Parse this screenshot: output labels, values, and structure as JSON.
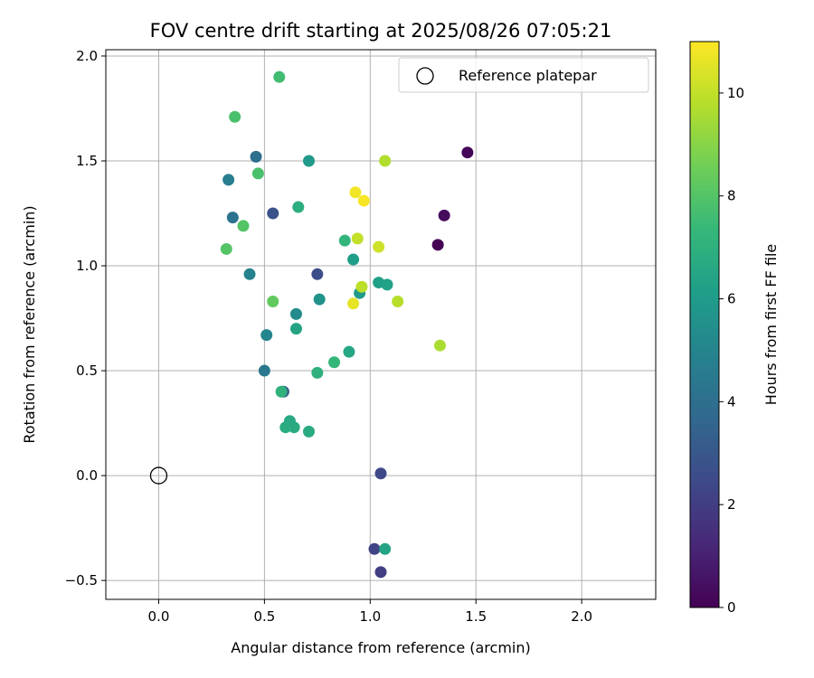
{
  "chart_data": {
    "type": "scatter",
    "title": "FOV centre drift starting at 2025/08/26 07:05:21",
    "xlabel": "Angular distance from reference (arcmin)",
    "ylabel": "Rotation from reference (arcmin)",
    "xlim": [
      -0.25,
      2.35
    ],
    "ylim": [
      -0.59,
      2.03
    ],
    "xticks": [
      0.0,
      0.5,
      1.0,
      1.5,
      2.0
    ],
    "xtick_labels": [
      "0.0",
      "0.5",
      "1.0",
      "1.5",
      "2.0"
    ],
    "yticks": [
      -0.5,
      0.0,
      0.5,
      1.0,
      1.5,
      2.0
    ],
    "ytick_labels": [
      "−0.5",
      "0.0",
      "0.5",
      "1.0",
      "1.5",
      "2.0"
    ],
    "grid": true,
    "legend_position": "top-right",
    "reference": {
      "name": "Reference platepar",
      "x": 0.0,
      "y": 0.0
    },
    "colorbar": {
      "label": "Hours from first FF file",
      "min": 0,
      "max": 11,
      "colormap": "viridis",
      "ticks": [
        0,
        2,
        4,
        6,
        8,
        10
      ],
      "tick_labels": [
        "0",
        "2",
        "4",
        "6",
        "8",
        "10"
      ]
    },
    "points": [
      {
        "x": 1.32,
        "y": 1.1,
        "hours": 0.0
      },
      {
        "x": 1.46,
        "y": 1.54,
        "hours": 0.1
      },
      {
        "x": 1.35,
        "y": 1.24,
        "hours": 0.3
      },
      {
        "x": 1.05,
        "y": -0.46,
        "hours": 2.0
      },
      {
        "x": 1.02,
        "y": -0.35,
        "hours": 2.2
      },
      {
        "x": 1.05,
        "y": 0.01,
        "hours": 2.4
      },
      {
        "x": 0.75,
        "y": 0.96,
        "hours": 2.6
      },
      {
        "x": 0.54,
        "y": 1.25,
        "hours": 2.8
      },
      {
        "x": 0.59,
        "y": 0.4,
        "hours": 3.2
      },
      {
        "x": 0.46,
        "y": 1.52,
        "hours": 4.0
      },
      {
        "x": 0.35,
        "y": 1.23,
        "hours": 4.2
      },
      {
        "x": 0.5,
        "y": 0.5,
        "hours": 4.4
      },
      {
        "x": 0.33,
        "y": 1.41,
        "hours": 4.7
      },
      {
        "x": 0.43,
        "y": 0.96,
        "hours": 4.9
      },
      {
        "x": 0.51,
        "y": 0.67,
        "hours": 5.0
      },
      {
        "x": 0.65,
        "y": 0.77,
        "hours": 5.3
      },
      {
        "x": 0.76,
        "y": 0.84,
        "hours": 5.6
      },
      {
        "x": 0.71,
        "y": 1.5,
        "hours": 5.9
      },
      {
        "x": 0.95,
        "y": 0.87,
        "hours": 6.0
      },
      {
        "x": 0.92,
        "y": 1.03,
        "hours": 6.1
      },
      {
        "x": 1.04,
        "y": 0.92,
        "hours": 6.2
      },
      {
        "x": 1.08,
        "y": 0.91,
        "hours": 6.3
      },
      {
        "x": 1.07,
        "y": -0.35,
        "hours": 6.4
      },
      {
        "x": 0.65,
        "y": 0.7,
        "hours": 6.4
      },
      {
        "x": 0.9,
        "y": 0.59,
        "hours": 6.5
      },
      {
        "x": 0.62,
        "y": 0.26,
        "hours": 6.6
      },
      {
        "x": 0.64,
        "y": 0.23,
        "hours": 6.7
      },
      {
        "x": 0.71,
        "y": 0.21,
        "hours": 6.7
      },
      {
        "x": 0.6,
        "y": 0.23,
        "hours": 6.8
      },
      {
        "x": 0.66,
        "y": 1.28,
        "hours": 6.9
      },
      {
        "x": 0.75,
        "y": 0.49,
        "hours": 7.0
      },
      {
        "x": 0.58,
        "y": 0.4,
        "hours": 7.1
      },
      {
        "x": 0.88,
        "y": 1.12,
        "hours": 7.2
      },
      {
        "x": 0.83,
        "y": 0.54,
        "hours": 7.3
      },
      {
        "x": 0.57,
        "y": 1.9,
        "hours": 7.6
      },
      {
        "x": 0.47,
        "y": 1.44,
        "hours": 7.8
      },
      {
        "x": 0.36,
        "y": 1.71,
        "hours": 7.8
      },
      {
        "x": 0.4,
        "y": 1.19,
        "hours": 8.0
      },
      {
        "x": 0.32,
        "y": 1.08,
        "hours": 8.0
      },
      {
        "x": 0.54,
        "y": 0.83,
        "hours": 8.3
      },
      {
        "x": 1.33,
        "y": 0.62,
        "hours": 9.6
      },
      {
        "x": 1.07,
        "y": 1.5,
        "hours": 9.7
      },
      {
        "x": 1.13,
        "y": 0.83,
        "hours": 9.8
      },
      {
        "x": 0.96,
        "y": 0.9,
        "hours": 9.9
      },
      {
        "x": 0.94,
        "y": 1.13,
        "hours": 10.0
      },
      {
        "x": 1.04,
        "y": 1.09,
        "hours": 10.2
      },
      {
        "x": 0.92,
        "y": 0.82,
        "hours": 10.6
      },
      {
        "x": 0.93,
        "y": 1.35,
        "hours": 10.8
      },
      {
        "x": 0.97,
        "y": 1.31,
        "hours": 10.9
      }
    ]
  }
}
